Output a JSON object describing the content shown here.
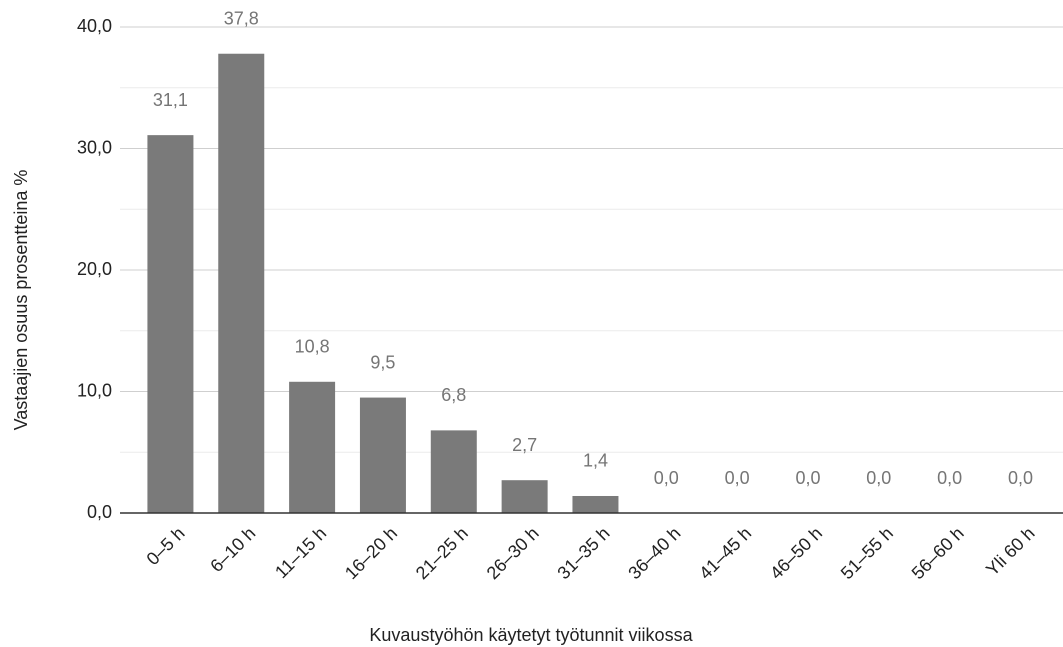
{
  "chart_data": {
    "type": "bar",
    "x_label": "Kuvaustyöhön käytetyt työtunnit viikossa",
    "y_label": "Vastaajien osuus prosentteina %",
    "categories": [
      "0–5 h",
      "6–10 h",
      "11–15 h",
      "16–20 h",
      "21–25 h",
      "26–30 h",
      "31–35 h",
      "36–40 h",
      "41–45 h",
      "46–50 h",
      "51–55 h",
      "56–60 h",
      "Yli 60 h"
    ],
    "values": [
      31.1,
      37.8,
      10.8,
      9.5,
      6.8,
      2.7,
      1.4,
      0,
      0,
      0,
      0,
      0,
      0
    ],
    "value_labels": [
      "31,1",
      "37,8",
      "10,8",
      "9,5",
      "6,8",
      "2,7",
      "1,4",
      "0,0",
      "0,0",
      "0,0",
      "0,0",
      "0,0",
      "0,0"
    ],
    "color": "#7a7a7a",
    "ylim": [
      0,
      40
    ],
    "yticks": [
      {
        "value": 0,
        "label": "0,0"
      },
      {
        "value": 10,
        "label": "10,0"
      },
      {
        "value": 20,
        "label": "20,0"
      },
      {
        "value": 30,
        "label": "30,0"
      },
      {
        "value": 40,
        "label": "40,0"
      }
    ],
    "minor_yticks": [
      5,
      15,
      25,
      35
    ],
    "grid": true
  }
}
